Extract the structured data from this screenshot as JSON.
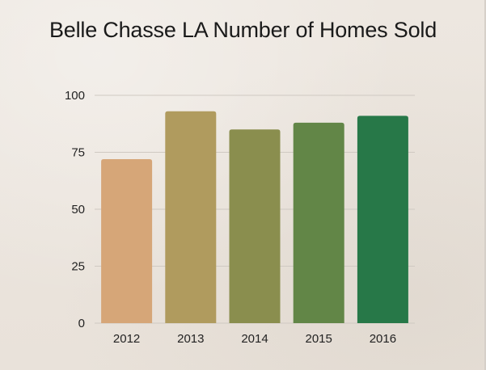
{
  "chart_data": {
    "type": "bar",
    "title": "Belle Chasse LA Number of Homes Sold",
    "categories": [
      "2012",
      "2013",
      "2014",
      "2015",
      "2016"
    ],
    "values": [
      72,
      93,
      85,
      88,
      91
    ],
    "bar_colors": [
      "#d6a678",
      "#b09b5e",
      "#8a8e4e",
      "#628647",
      "#277848"
    ],
    "gridline_color": "#cfc9c2",
    "xlabel": "",
    "ylabel": "",
    "ylim": [
      0,
      100
    ],
    "yticks": [
      "0",
      "25",
      "50",
      "75",
      "100"
    ],
    "ytick_values": [
      0,
      25,
      50,
      75,
      100
    ],
    "grid": true,
    "legend": "none"
  }
}
